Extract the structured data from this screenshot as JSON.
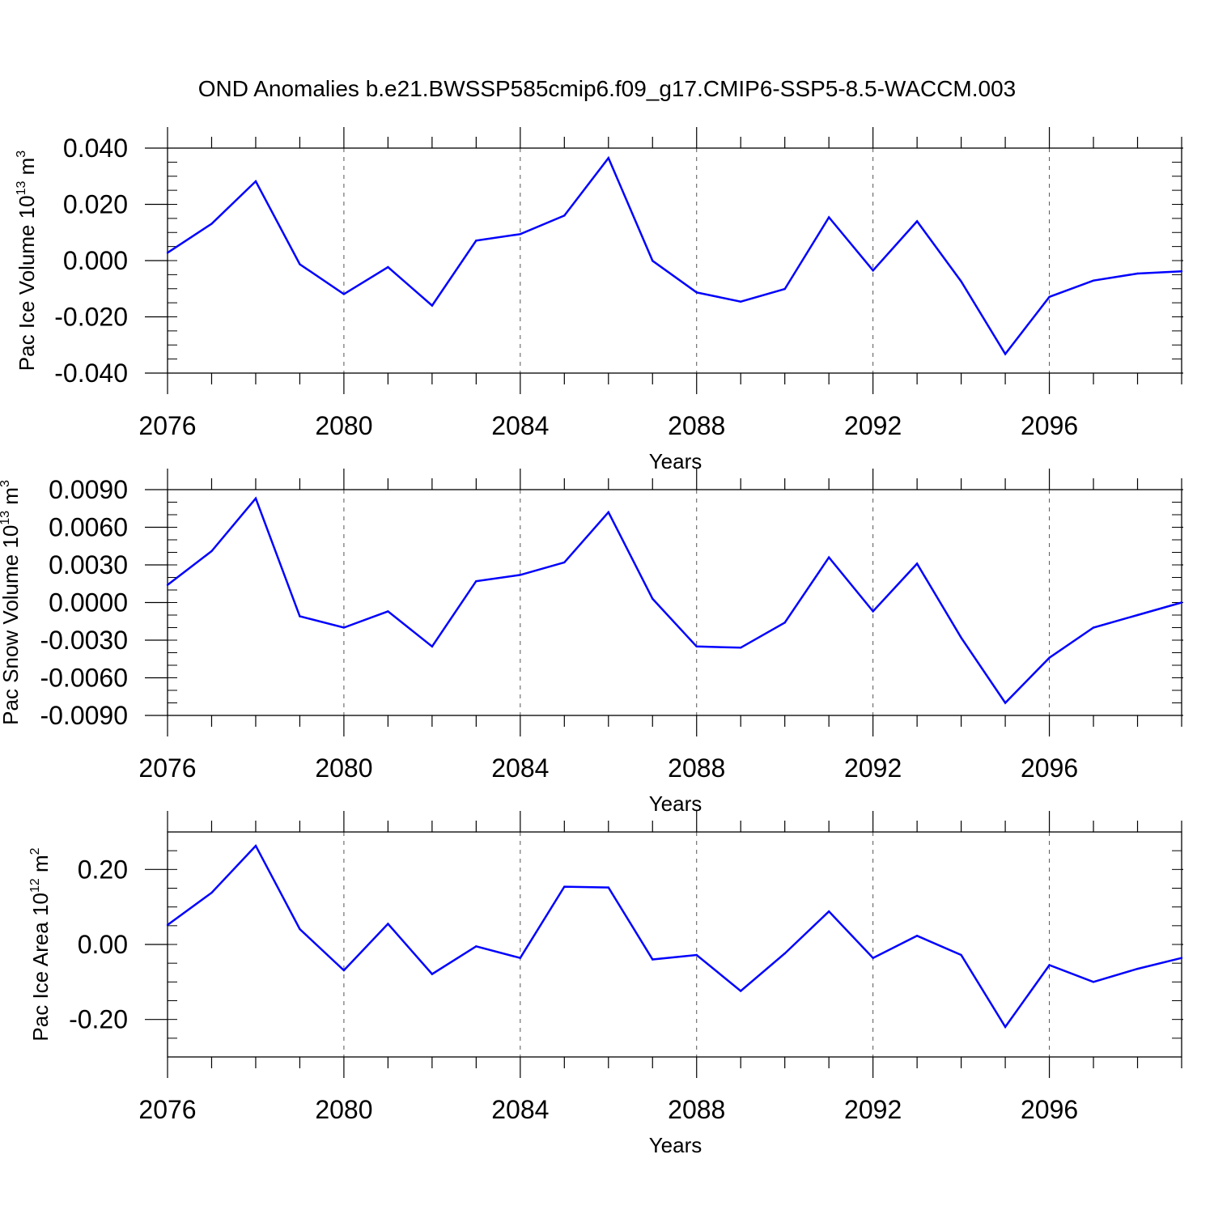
{
  "title": "OND Anomalies b.e21.BWSSP585cmip6.f09_g17.CMIP6-SSP5-8.5-WACCM.003",
  "colors": {
    "line": "#0000ff",
    "axis": "#000000",
    "grid": "#555555"
  },
  "chart_data": [
    {
      "type": "line",
      "ylabel": {
        "base": "Pac Ice Volume 10",
        "exp": "13",
        "unit": " m",
        "unit_exp": "3"
      },
      "xlabel": "Years",
      "xlim": [
        2076,
        2099
      ],
      "ylim": [
        -0.04,
        0.04
      ],
      "xticks": [
        2076,
        2080,
        2084,
        2088,
        2092,
        2096
      ],
      "yticks": [
        0.04,
        0.02,
        0.0,
        -0.02,
        -0.04
      ],
      "ytick_labels": [
        "0.040",
        "0.020",
        "0.000",
        "-0.020",
        "-0.040"
      ],
      "yminor_step": 0.005,
      "grid": "vertical dashed at major x ticks",
      "x": [
        2076,
        2077,
        2078,
        2079,
        2080,
        2081,
        2082,
        2083,
        2084,
        2085,
        2086,
        2087,
        2088,
        2089,
        2090,
        2091,
        2092,
        2093,
        2094,
        2095,
        2096,
        2097,
        2098,
        2099
      ],
      "values": [
        0.0028,
        0.0131,
        0.0282,
        -0.0013,
        -0.0119,
        -0.0023,
        -0.016,
        0.0071,
        0.0094,
        0.016,
        0.0365,
        -0.0001,
        -0.0113,
        -0.0146,
        -0.0101,
        0.0154,
        -0.0035,
        0.014,
        -0.0074,
        -0.0332,
        -0.0129,
        -0.0071,
        -0.0046,
        -0.0038
      ]
    },
    {
      "type": "line",
      "ylabel": {
        "base": "Pac Snow Volume 10",
        "exp": "13",
        "unit": " m",
        "unit_exp": "3"
      },
      "xlabel": "Years",
      "xlim": [
        2076,
        2099
      ],
      "ylim": [
        -0.009,
        0.009
      ],
      "xticks": [
        2076,
        2080,
        2084,
        2088,
        2092,
        2096
      ],
      "yticks": [
        0.009,
        0.006,
        0.003,
        0.0,
        -0.003,
        -0.006,
        -0.009
      ],
      "ytick_labels": [
        "0.0090",
        "0.0060",
        "0.0030",
        "0.0000",
        "-0.0030",
        "-0.0060",
        "-0.0090"
      ],
      "yminor_step": 0.001,
      "grid": "vertical dashed at major x ticks",
      "x": [
        2076,
        2077,
        2078,
        2079,
        2080,
        2081,
        2082,
        2083,
        2084,
        2085,
        2086,
        2087,
        2088,
        2089,
        2090,
        2091,
        2092,
        2093,
        2094,
        2095,
        2096,
        2097,
        2098,
        2099
      ],
      "values": [
        0.0014,
        0.0041,
        0.0083,
        -0.0011,
        -0.002,
        -0.0007,
        -0.0035,
        0.0017,
        0.0022,
        0.0032,
        0.0072,
        0.0003,
        -0.0035,
        -0.0036,
        -0.0016,
        0.0036,
        -0.0007,
        0.0031,
        -0.0028,
        -0.008,
        -0.0044,
        -0.002,
        -0.001,
        0.0
      ]
    },
    {
      "type": "line",
      "ylabel": {
        "base": "Pac Ice Area 10",
        "exp": "12",
        "unit": " m",
        "unit_exp": "2"
      },
      "xlabel": "Years",
      "xlim": [
        2076,
        2099
      ],
      "ylim": [
        -0.3,
        0.3
      ],
      "xticks": [
        2076,
        2080,
        2084,
        2088,
        2092,
        2096
      ],
      "yticks": [
        0.2,
        0.0,
        -0.2
      ],
      "ytick_labels": [
        "0.20",
        "0.00",
        "-0.20"
      ],
      "yminor_step": 0.05,
      "grid": "vertical dashed at major x ticks",
      "x": [
        2076,
        2077,
        2078,
        2079,
        2080,
        2081,
        2082,
        2083,
        2084,
        2085,
        2086,
        2087,
        2088,
        2089,
        2090,
        2091,
        2092,
        2093,
        2094,
        2095,
        2096,
        2097,
        2098,
        2099
      ],
      "values": [
        0.052,
        0.138,
        0.263,
        0.041,
        -0.069,
        0.055,
        -0.079,
        -0.005,
        -0.036,
        0.154,
        0.152,
        -0.04,
        -0.028,
        -0.124,
        -0.024,
        0.088,
        -0.036,
        0.023,
        -0.028,
        -0.22,
        -0.055,
        -0.1,
        -0.065,
        -0.036
      ]
    }
  ]
}
